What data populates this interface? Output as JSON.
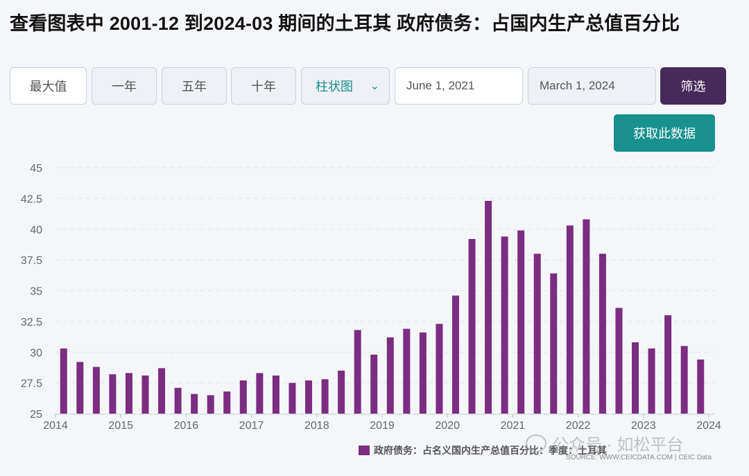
{
  "page": {
    "title": "查看图表中 2001-12 到2024-03 期间的土耳其 政府债务：占国内生产总值百分比"
  },
  "toolbar": {
    "range_buttons": [
      "最大值",
      "一年",
      "五年",
      "十年"
    ],
    "chart_type": "柱状图",
    "date_from": "June 1, 2021",
    "date_to": "March 1, 2024",
    "filter_label": "筛选",
    "fetch_label": "获取此数据"
  },
  "legend": {
    "label": "政府债务：占名义国内生产总值百分比：季度：土耳其"
  },
  "source": "SOURCE: WWW.CEICDATA.COM | CEIC Data",
  "watermark": "公众号 · 如松平台",
  "chart_data": {
    "type": "bar",
    "color": "#7b2d82",
    "ylim": [
      25,
      45
    ],
    "yticks": [
      25,
      27.5,
      30,
      32.5,
      35,
      37.5,
      40,
      42.5,
      45
    ],
    "ytick_labels": [
      "25",
      "27.5",
      "30",
      "32.5",
      "35",
      "37.5",
      "40",
      "42.5",
      "45"
    ],
    "xlim": [
      2014.0,
      2024.0
    ],
    "xticks": [
      "2014",
      "2015",
      "2016",
      "2017",
      "2018",
      "2019",
      "2020",
      "2021",
      "2022",
      "2023",
      "2024"
    ],
    "grid": true,
    "legend_position": "bottom",
    "x": [
      "2014-03",
      "2014-06",
      "2014-09",
      "2014-12",
      "2015-03",
      "2015-06",
      "2015-09",
      "2015-12",
      "2016-03",
      "2016-06",
      "2016-09",
      "2016-12",
      "2017-03",
      "2017-06",
      "2017-09",
      "2017-12",
      "2018-03",
      "2018-06",
      "2018-09",
      "2018-12",
      "2019-03",
      "2019-06",
      "2019-09",
      "2019-12",
      "2020-03",
      "2020-06",
      "2020-09",
      "2020-12",
      "2021-03",
      "2021-06",
      "2021-09",
      "2021-12",
      "2022-03",
      "2022-06",
      "2022-09",
      "2022-12",
      "2023-03",
      "2023-06",
      "2023-09",
      "2023-12"
    ],
    "values": [
      30.3,
      29.2,
      28.8,
      28.2,
      28.3,
      28.1,
      28.7,
      27.1,
      26.6,
      26.5,
      26.8,
      27.7,
      28.3,
      28.1,
      27.5,
      27.7,
      27.8,
      28.5,
      31.8,
      29.8,
      31.2,
      31.9,
      31.6,
      32.3,
      34.6,
      39.2,
      42.3,
      39.4,
      39.9,
      38.0,
      36.4,
      40.3,
      40.8,
      38.0,
      33.6,
      30.8,
      30.3,
      33.0,
      30.5,
      29.4
    ]
  }
}
